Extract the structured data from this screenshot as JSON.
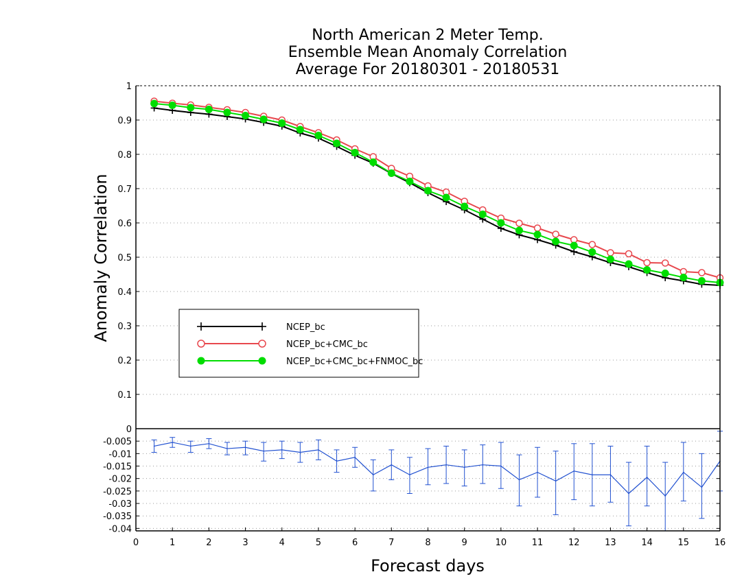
{
  "chart_data": [
    {
      "type": "line",
      "title": [
        "North American 2 Meter Temp.",
        "Ensemble Mean Anomaly Correlation",
        "Average For 20180301 - 20180531"
      ],
      "xlabel": "Forecast days",
      "ylabel": "Anomaly Correlation",
      "xlim": [
        0,
        16
      ],
      "ylim": [
        0,
        1
      ],
      "x_ticks": [
        "0",
        "1",
        "2",
        "3",
        "4",
        "5",
        "6",
        "7",
        "8",
        "9",
        "10",
        "11",
        "12",
        "13",
        "14",
        "15",
        "16"
      ],
      "y_ticks": [
        "0",
        "0.1",
        "0.2",
        "0.3",
        "0.4",
        "0.5",
        "0.6",
        "0.7",
        "0.8",
        "0.9",
        "1"
      ],
      "grid": "horizontal dotted",
      "legend_placement": "lower-left",
      "x": [
        0.5,
        1,
        1.5,
        2,
        2.5,
        3,
        3.5,
        4,
        4.5,
        5,
        5.5,
        6,
        6.5,
        7,
        7.5,
        8,
        8.5,
        9,
        9.5,
        10,
        10.5,
        11,
        11.5,
        12,
        12.5,
        13,
        13.5,
        14,
        14.5,
        15,
        15.5,
        16
      ],
      "series": [
        {
          "name": "NCEP_bc",
          "color": "#000000",
          "marker": "plus",
          "values": [
            0.935,
            0.928,
            0.922,
            0.917,
            0.91,
            0.903,
            0.893,
            0.882,
            0.862,
            0.847,
            0.823,
            0.797,
            0.774,
            0.744,
            0.717,
            0.688,
            0.662,
            0.638,
            0.611,
            0.584,
            0.565,
            0.551,
            0.535,
            0.516,
            0.501,
            0.484,
            0.472,
            0.455,
            0.44,
            0.431,
            0.421,
            0.418
          ]
        },
        {
          "name": "NCEP_bc+CMC_bc",
          "color": "#e8474d",
          "marker": "open-circle",
          "values": [
            0.955,
            0.949,
            0.944,
            0.937,
            0.93,
            0.922,
            0.911,
            0.9,
            0.881,
            0.863,
            0.842,
            0.816,
            0.793,
            0.759,
            0.736,
            0.708,
            0.69,
            0.663,
            0.638,
            0.614,
            0.599,
            0.585,
            0.567,
            0.551,
            0.537,
            0.513,
            0.51,
            0.484,
            0.483,
            0.458,
            0.455,
            0.44
          ]
        },
        {
          "name": "NCEP_bc+CMC_bc+FNMOC_bc",
          "color": "#00dd00",
          "marker": "filled-circle",
          "values": [
            0.948,
            0.943,
            0.936,
            0.931,
            0.922,
            0.913,
            0.902,
            0.891,
            0.872,
            0.855,
            0.832,
            0.805,
            0.777,
            0.745,
            0.721,
            0.694,
            0.674,
            0.648,
            0.625,
            0.6,
            0.578,
            0.566,
            0.546,
            0.534,
            0.515,
            0.494,
            0.48,
            0.463,
            0.453,
            0.441,
            0.431,
            0.426
          ]
        }
      ]
    },
    {
      "type": "line",
      "ylim": [
        -0.041,
        0
      ],
      "y_ticks": [
        "-0.005",
        "-0.01",
        "-0.015",
        "-0.02",
        "-0.025",
        "-0.03",
        "-0.035",
        "-0.04"
      ],
      "x": [
        0.5,
        1,
        1.5,
        2,
        2.5,
        3,
        3.5,
        4,
        4.5,
        5,
        5.5,
        6,
        6.5,
        7,
        7.5,
        8,
        8.5,
        9,
        9.5,
        10,
        10.5,
        11,
        11.5,
        12,
        12.5,
        13,
        13.5,
        14,
        14.5,
        15,
        15.5,
        16
      ],
      "series": [
        {
          "color": "#2050d0",
          "values": [
            -0.007,
            -0.0055,
            -0.007,
            -0.006,
            -0.008,
            -0.0075,
            -0.009,
            -0.0085,
            -0.0095,
            -0.0085,
            -0.013,
            -0.0115,
            -0.0185,
            -0.0145,
            -0.0185,
            -0.0155,
            -0.0145,
            -0.0155,
            -0.0145,
            -0.015,
            -0.0205,
            -0.0175,
            -0.021,
            -0.017,
            -0.0185,
            -0.0185,
            -0.026,
            -0.0195,
            -0.027,
            -0.0175,
            -0.0235,
            -0.013
          ],
          "error_low": [
            -0.0095,
            -0.0075,
            -0.0095,
            -0.008,
            -0.0105,
            -0.0105,
            -0.013,
            -0.012,
            -0.0135,
            -0.0125,
            -0.0175,
            -0.0155,
            -0.025,
            -0.0205,
            -0.026,
            -0.0225,
            -0.022,
            -0.023,
            -0.022,
            -0.024,
            -0.031,
            -0.0275,
            -0.0345,
            -0.0285,
            -0.031,
            -0.0295,
            -0.039,
            -0.031,
            -0.041,
            -0.029,
            -0.036,
            -0.025
          ],
          "error_high": [
            -0.0045,
            -0.0035,
            -0.005,
            -0.004,
            -0.0055,
            -0.005,
            -0.0055,
            -0.005,
            -0.0055,
            -0.0045,
            -0.0085,
            -0.0075,
            -0.0125,
            -0.0085,
            -0.0115,
            -0.008,
            -0.007,
            -0.0085,
            -0.0065,
            -0.0055,
            -0.0105,
            -0.0075,
            -0.009,
            -0.006,
            -0.006,
            -0.007,
            -0.0135,
            -0.007,
            -0.0135,
            -0.0055,
            -0.01,
            -0.001
          ]
        }
      ]
    }
  ]
}
